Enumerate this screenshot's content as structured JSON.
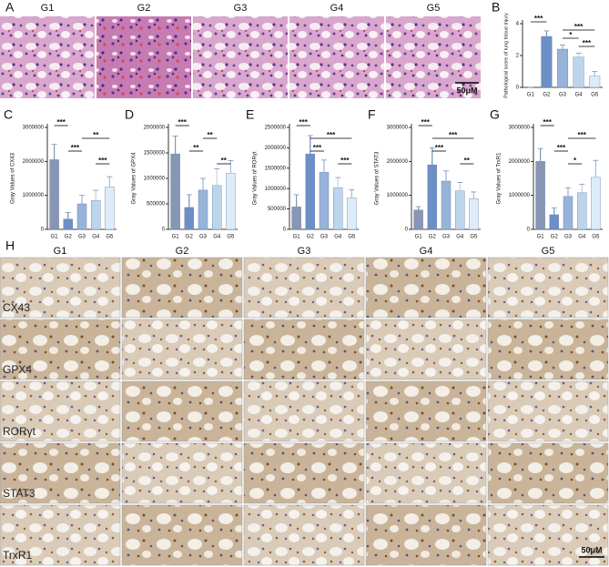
{
  "panel_a": {
    "label": "A",
    "groups": [
      "G1",
      "G2",
      "G3",
      "G4",
      "G5"
    ],
    "scale_bar": "50μM"
  },
  "panel_h": {
    "label": "H",
    "groups": [
      "G1",
      "G2",
      "G3",
      "G4",
      "G5"
    ],
    "rows": [
      "CX43",
      "GPX4",
      "RORγt",
      "STAT3",
      "TrxR1"
    ],
    "scale_bar": "50μM"
  },
  "chart_data": [
    {
      "type": "bar",
      "panel_label": "B",
      "y_label": "Pathological score of lung tissue injury",
      "categories": [
        "G1",
        "G2",
        "G3",
        "G4",
        "G5"
      ],
      "values": [
        0,
        3.2,
        2.4,
        1.9,
        0.7
      ],
      "errors": [
        0,
        0.35,
        0.25,
        0.25,
        0.3
      ],
      "colors": [
        "#8796b4",
        "#6c8fc6",
        "#97b3d9",
        "#bcd5ec",
        "#dcedf9"
      ],
      "ylim": [
        0,
        4
      ],
      "yticks": [
        0,
        2,
        4
      ],
      "annotations": [
        {
          "label": "***",
          "groups": [
            "G1",
            "G2"
          ]
        },
        {
          "label": "***",
          "groups": [
            "G3",
            "G5"
          ]
        },
        {
          "label": "*",
          "groups": [
            "G3",
            "G4"
          ]
        },
        {
          "label": "***",
          "groups": [
            "G4",
            "G5"
          ]
        }
      ]
    },
    {
      "type": "bar",
      "panel_label": "C",
      "y_label": "Gray Values of CX43",
      "categories": [
        "G1",
        "G2",
        "G3",
        "G4",
        "G5"
      ],
      "values": [
        2050000,
        300000,
        750000,
        850000,
        1250000
      ],
      "errors": [
        450000,
        200000,
        250000,
        300000,
        300000
      ],
      "colors": [
        "#8796b4",
        "#6c8fc6",
        "#97b3d9",
        "#bcd5ec",
        "#dcedf9"
      ],
      "ylim": [
        0,
        3000000
      ],
      "yticks": [
        0,
        1000000,
        2000000,
        3000000
      ],
      "annotations": [
        {
          "label": "***",
          "groups": [
            "G1",
            "G2"
          ]
        },
        {
          "label": "**",
          "groups": [
            "G3",
            "G5"
          ]
        },
        {
          "label": "***",
          "groups": [
            "G2",
            "G3"
          ]
        },
        {
          "label": "***",
          "groups": [
            "G4",
            "G5"
          ]
        }
      ]
    },
    {
      "type": "bar",
      "panel_label": "D",
      "y_label": "Gray Values of GPX4",
      "categories": [
        "G1",
        "G2",
        "G3",
        "G4",
        "G5"
      ],
      "values": [
        1480000,
        430000,
        770000,
        860000,
        1100000
      ],
      "errors": [
        350000,
        250000,
        230000,
        330000,
        250000
      ],
      "colors": [
        "#8796b4",
        "#6c8fc6",
        "#97b3d9",
        "#bcd5ec",
        "#dcedf9"
      ],
      "ylim": [
        0,
        2000000
      ],
      "yticks": [
        0,
        500000,
        1000000,
        1500000,
        2000000
      ],
      "annotations": [
        {
          "label": "***",
          "groups": [
            "G1",
            "G2"
          ]
        },
        {
          "label": "**",
          "groups": [
            "G3",
            "G4"
          ]
        },
        {
          "label": "**",
          "groups": [
            "G2",
            "G3"
          ]
        },
        {
          "label": "**",
          "groups": [
            "G4",
            "G5"
          ]
        }
      ]
    },
    {
      "type": "bar",
      "panel_label": "E",
      "y_label": "Gray Values of RORγt",
      "categories": [
        "G1",
        "G2",
        "G3",
        "G4",
        "G5"
      ],
      "values": [
        550000,
        1850000,
        1400000,
        1020000,
        770000
      ],
      "errors": [
        300000,
        450000,
        300000,
        250000,
        200000
      ],
      "colors": [
        "#8796b4",
        "#6c8fc6",
        "#97b3d9",
        "#bcd5ec",
        "#dcedf9"
      ],
      "ylim": [
        0,
        2500000
      ],
      "yticks": [
        0,
        500000,
        1000000,
        1500000,
        2000000,
        2500000
      ],
      "annotations": [
        {
          "label": "***",
          "groups": [
            "G1",
            "G2"
          ]
        },
        {
          "label": "***",
          "groups": [
            "G2",
            "G5"
          ]
        },
        {
          "label": "***",
          "groups": [
            "G2",
            "G3"
          ]
        },
        {
          "label": "***",
          "groups": [
            "G4",
            "G5"
          ]
        }
      ]
    },
    {
      "type": "bar",
      "panel_label": "F",
      "y_label": "Gray Values of STAT3",
      "categories": [
        "G1",
        "G2",
        "G3",
        "G4",
        "G5"
      ],
      "values": [
        570000,
        1900000,
        1420000,
        1130000,
        900000
      ],
      "errors": [
        100000,
        500000,
        300000,
        250000,
        200000
      ],
      "colors": [
        "#8796b4",
        "#6c8fc6",
        "#97b3d9",
        "#bcd5ec",
        "#dcedf9"
      ],
      "ylim": [
        0,
        3000000
      ],
      "yticks": [
        0,
        1000000,
        2000000,
        3000000
      ],
      "annotations": [
        {
          "label": "***",
          "groups": [
            "G1",
            "G2"
          ]
        },
        {
          "label": "***",
          "groups": [
            "G2",
            "G5"
          ]
        },
        {
          "label": "***",
          "groups": [
            "G2",
            "G3"
          ]
        },
        {
          "label": "**",
          "groups": [
            "G4",
            "G5"
          ]
        }
      ]
    },
    {
      "type": "bar",
      "panel_label": "G",
      "y_label": "Gray Values of TrxR1",
      "categories": [
        "G1",
        "G2",
        "G3",
        "G4",
        "G5"
      ],
      "values": [
        2000000,
        430000,
        970000,
        1080000,
        1530000
      ],
      "errors": [
        380000,
        200000,
        250000,
        250000,
        500000
      ],
      "colors": [
        "#8796b4",
        "#6c8fc6",
        "#97b3d9",
        "#bcd5ec",
        "#dcedf9"
      ],
      "ylim": [
        0,
        3000000
      ],
      "yticks": [
        0,
        1000000,
        2000000,
        3000000
      ],
      "annotations": [
        {
          "label": "***",
          "groups": [
            "G1",
            "G2"
          ]
        },
        {
          "label": "***",
          "groups": [
            "G3",
            "G5"
          ]
        },
        {
          "label": "***",
          "groups": [
            "G2",
            "G3"
          ]
        },
        {
          "label": "*",
          "groups": [
            "G3",
            "G4"
          ]
        }
      ]
    }
  ]
}
